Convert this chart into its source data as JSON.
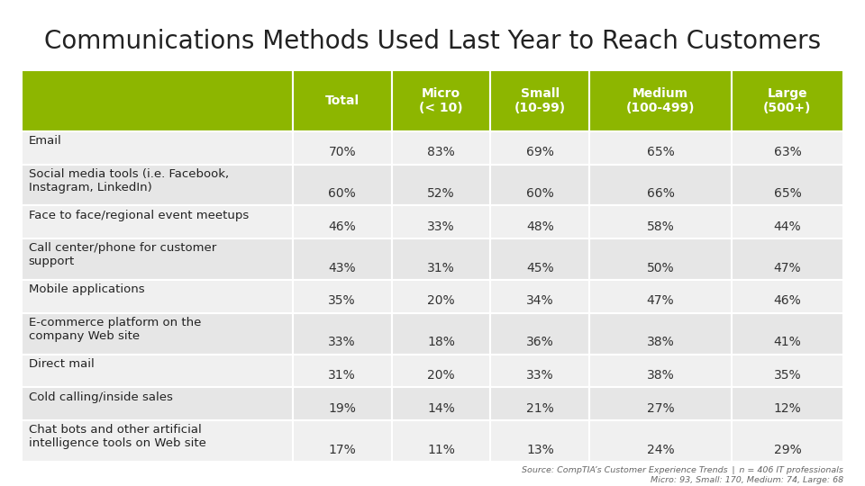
{
  "title": "Communications Methods Used Last Year to Reach Customers",
  "col_headers": [
    "Total",
    "Micro\n(< 10)",
    "Small\n(10-99)",
    "Medium\n(100-499)",
    "Large\n(500+)"
  ],
  "row_labels": [
    "Email",
    "Social media tools (i.e. Facebook,\nInstagram, LinkedIn)",
    "Face to face/regional event meetups",
    "Call center/phone for customer\nsupport",
    "Mobile applications",
    "E-commerce platform on the\ncompany Web site",
    "Direct mail",
    "Cold calling/inside sales",
    "Chat bots and other artificial\nintelligence tools on Web site"
  ],
  "row_is_tall": [
    false,
    true,
    false,
    true,
    false,
    true,
    false,
    false,
    true
  ],
  "data": [
    [
      "70%",
      "83%",
      "69%",
      "65%",
      "63%"
    ],
    [
      "60%",
      "52%",
      "60%",
      "66%",
      "65%"
    ],
    [
      "46%",
      "33%",
      "48%",
      "58%",
      "44%"
    ],
    [
      "43%",
      "31%",
      "45%",
      "50%",
      "47%"
    ],
    [
      "35%",
      "20%",
      "34%",
      "47%",
      "46%"
    ],
    [
      "33%",
      "18%",
      "36%",
      "38%",
      "41%"
    ],
    [
      "31%",
      "20%",
      "33%",
      "38%",
      "35%"
    ],
    [
      "19%",
      "14%",
      "21%",
      "27%",
      "12%"
    ],
    [
      "17%",
      "11%",
      "13%",
      "24%",
      "29%"
    ]
  ],
  "header_bg": "#8db600",
  "header_text_color": "#ffffff",
  "footer_text": "Source: CompTIA’s Customer Experience Trends | n = 406 IT professionals\nMicro: 93, Small: 170, Medium: 74, Large: 68",
  "title_fontsize": 20,
  "header_fontsize": 10,
  "data_fontsize": 10,
  "label_fontsize": 9.5
}
